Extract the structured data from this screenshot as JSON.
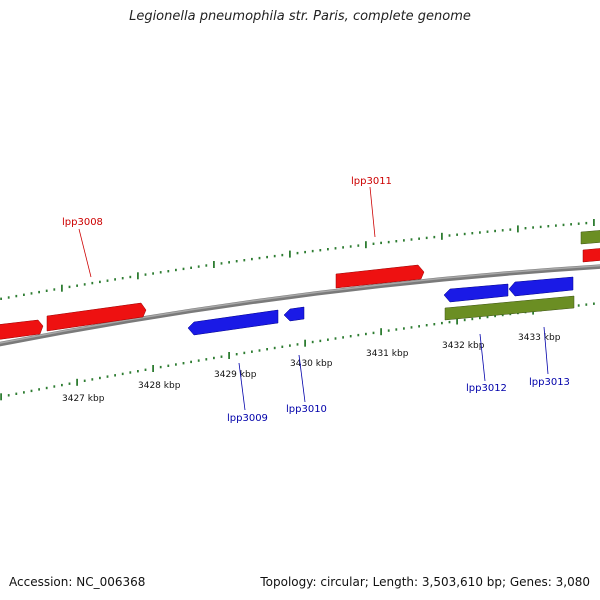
{
  "title": "Legionella pneumophila str. Paris, complete genome",
  "footer": {
    "accession": "Accession: NC_006368",
    "summary": "Topology: circular; Length: 3,503,610 bp; Genes: 3,080"
  },
  "colors": {
    "forward_gene": "#ee1111",
    "reverse_gene": "#1a1ae6",
    "other_feature": "#6b8e23",
    "backbone": "#808080",
    "tick": "#2e7d32",
    "label_forward": "#cc0000",
    "label_reverse": "#0000aa"
  },
  "scale_labels": [
    "3427 kbp",
    "3428 kbp",
    "3429 kbp",
    "3430 kbp",
    "3431 kbp",
    "3432 kbp",
    "3433 kbp"
  ],
  "gene_labels": [
    "lpp3008",
    "lpp3009",
    "lpp3010",
    "lpp3011",
    "lpp3012",
    "lpp3013"
  ]
}
